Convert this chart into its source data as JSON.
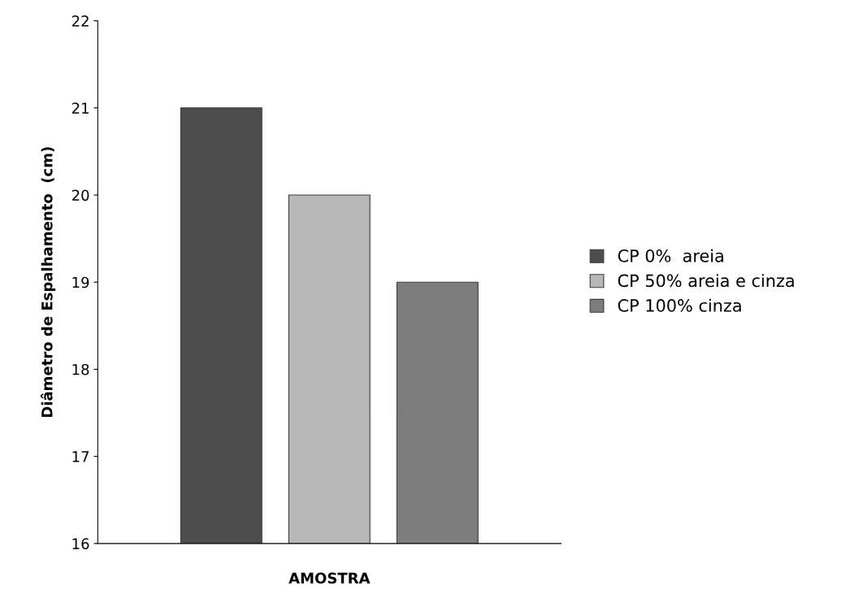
{
  "chart_data": {
    "type": "bar",
    "xlabel": "AMOSTRA",
    "ylabel": "Diâmetro de Espalhamento  (cm)",
    "categories": [
      null
    ],
    "series": [
      {
        "name": "CP 0%  areia",
        "color": "#4d4d4d",
        "values": [
          21
        ]
      },
      {
        "name": "CP 50% areia e cinza",
        "color": "#b8b8b8",
        "values": [
          20
        ]
      },
      {
        "name": "CP 100% cinza",
        "color": "#7d7d7d",
        "values": [
          19
        ]
      }
    ],
    "ylim": [
      16,
      22
    ],
    "yticks": [
      16,
      17,
      18,
      19,
      20,
      21,
      22
    ],
    "grid": false,
    "legend": "right"
  }
}
